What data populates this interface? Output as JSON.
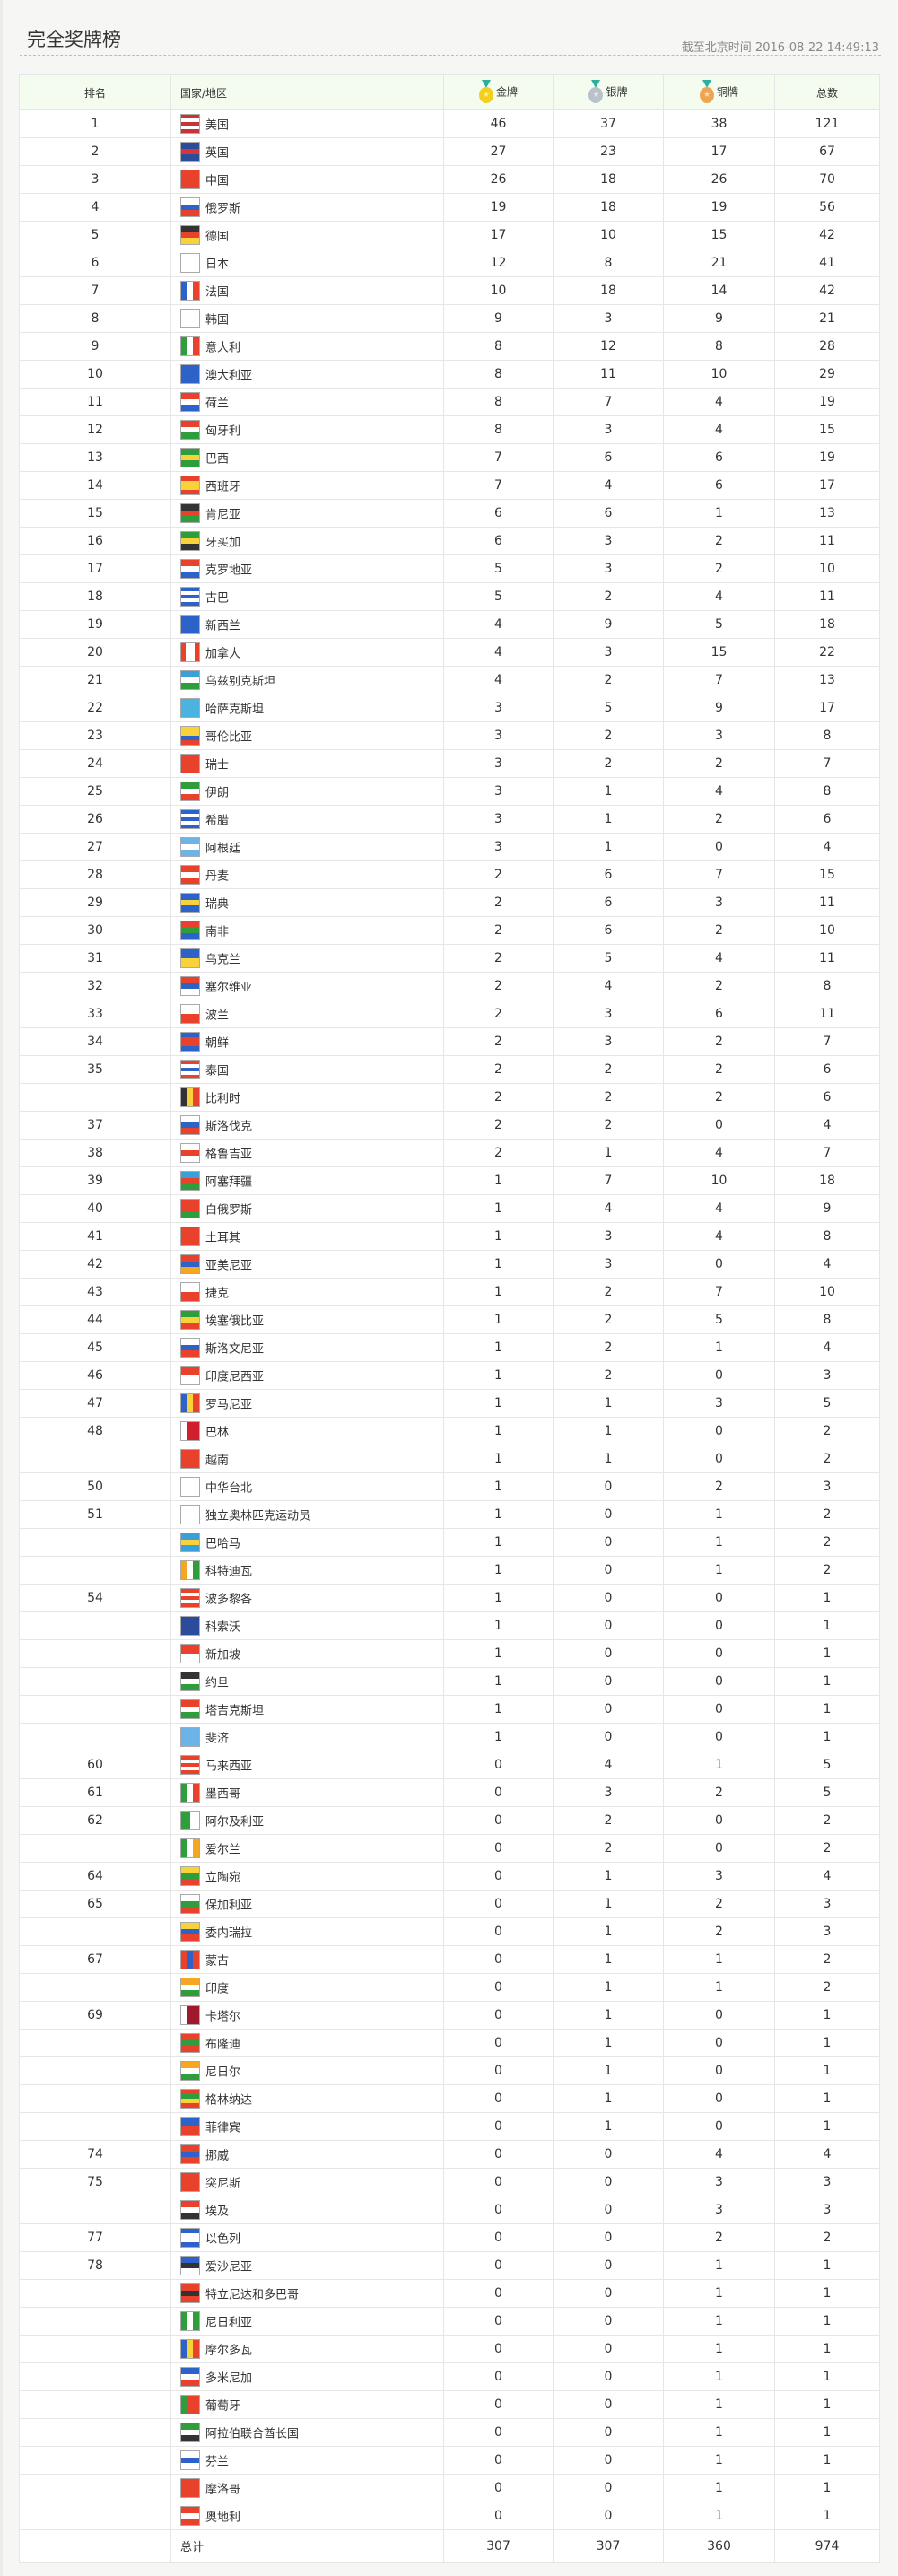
{
  "page": {
    "title": "完全奖牌榜",
    "timestamp": "截至北京时间 2016-08-22 14:49:13"
  },
  "table": {
    "headers": {
      "rank": "排名",
      "country": "国家/地区",
      "gold": "金牌",
      "silver": "银牌",
      "bronze": "铜牌",
      "total": "总数"
    },
    "medal_colors": {
      "gold": "#f3cf1c",
      "silver": "#b9c2c9",
      "bronze": "#eea552"
    },
    "rows": [
      {
        "rank": "1",
        "name": "美国",
        "gold": "46",
        "silver": "37",
        "bronze": "38",
        "total": "121",
        "flag": "h:#c8333a,#fff,#c8333a,#fff,#c8333a"
      },
      {
        "rank": "2",
        "name": "英国",
        "gold": "27",
        "silver": "23",
        "bronze": "17",
        "total": "67",
        "flag": "h:#2a4c9b,#d6363b,#2a4c9b"
      },
      {
        "rank": "3",
        "name": "中国",
        "gold": "26",
        "silver": "18",
        "bronze": "26",
        "total": "70",
        "flag": "h:#e8412c"
      },
      {
        "rank": "4",
        "name": "俄罗斯",
        "gold": "19",
        "silver": "18",
        "bronze": "19",
        "total": "56",
        "flag": "h:#fff,#2d62c8,#e8412c"
      },
      {
        "rank": "5",
        "name": "德国",
        "gold": "17",
        "silver": "10",
        "bronze": "15",
        "total": "42",
        "flag": "h:#333,#e8412c,#f7d23a"
      },
      {
        "rank": "6",
        "name": "日本",
        "gold": "12",
        "silver": "8",
        "bronze": "21",
        "total": "41",
        "flag": "h:#fff"
      },
      {
        "rank": "7",
        "name": "法国",
        "gold": "10",
        "silver": "18",
        "bronze": "14",
        "total": "42",
        "flag": "v:#2d62c8,#fff,#e8412c"
      },
      {
        "rank": "8",
        "name": "韩国",
        "gold": "9",
        "silver": "3",
        "bronze": "9",
        "total": "21",
        "flag": "h:#fff"
      },
      {
        "rank": "9",
        "name": "意大利",
        "gold": "8",
        "silver": "12",
        "bronze": "8",
        "total": "28",
        "flag": "v:#2e9d3c,#fff,#e8412c"
      },
      {
        "rank": "10",
        "name": "澳大利亚",
        "gold": "8",
        "silver": "11",
        "bronze": "10",
        "total": "29",
        "flag": "h:#2d62c8"
      },
      {
        "rank": "11",
        "name": "荷兰",
        "gold": "8",
        "silver": "7",
        "bronze": "4",
        "total": "19",
        "flag": "h:#e8412c,#fff,#2d62c8"
      },
      {
        "rank": "12",
        "name": "匈牙利",
        "gold": "8",
        "silver": "3",
        "bronze": "4",
        "total": "15",
        "flag": "h:#e8412c,#fff,#2e9d3c"
      },
      {
        "rank": "13",
        "name": "巴西",
        "gold": "7",
        "silver": "6",
        "bronze": "6",
        "total": "19",
        "flag": "h:#2e9d3c,#f7d23a,#2e9d3c"
      },
      {
        "rank": "14",
        "name": "西班牙",
        "gold": "7",
        "silver": "4",
        "bronze": "6",
        "total": "17",
        "flag": "h:#e8412c,#f7d23a,#f7d23a,#e8412c"
      },
      {
        "rank": "15",
        "name": "肯尼亚",
        "gold": "6",
        "silver": "6",
        "bronze": "1",
        "total": "13",
        "flag": "h:#333,#e8412c,#2e9d3c"
      },
      {
        "rank": "16",
        "name": "牙买加",
        "gold": "6",
        "silver": "3",
        "bronze": "2",
        "total": "11",
        "flag": "h:#2e9d3c,#f7d23a,#333"
      },
      {
        "rank": "17",
        "name": "克罗地亚",
        "gold": "5",
        "silver": "3",
        "bronze": "2",
        "total": "10",
        "flag": "h:#e8412c,#fff,#2d62c8"
      },
      {
        "rank": "18",
        "name": "古巴",
        "gold": "5",
        "silver": "2",
        "bronze": "4",
        "total": "11",
        "flag": "h:#2d62c8,#fff,#2d62c8,#fff,#2d62c8"
      },
      {
        "rank": "19",
        "name": "新西兰",
        "gold": "4",
        "silver": "9",
        "bronze": "5",
        "total": "18",
        "flag": "h:#2d62c8"
      },
      {
        "rank": "20",
        "name": "加拿大",
        "gold": "4",
        "silver": "3",
        "bronze": "15",
        "total": "22",
        "flag": "v:#e8412c,#fff,#fff,#e8412c"
      },
      {
        "rank": "21",
        "name": "乌兹别克斯坦",
        "gold": "4",
        "silver": "2",
        "bronze": "7",
        "total": "13",
        "flag": "h:#3aa0d8,#fff,#2e9d3c"
      },
      {
        "rank": "22",
        "name": "哈萨克斯坦",
        "gold": "3",
        "silver": "5",
        "bronze": "9",
        "total": "17",
        "flag": "h:#4ab3e0"
      },
      {
        "rank": "23",
        "name": "哥伦比亚",
        "gold": "3",
        "silver": "2",
        "bronze": "3",
        "total": "8",
        "flag": "h:#f7d23a,#f7d23a,#2d62c8,#e8412c"
      },
      {
        "rank": "24",
        "name": "瑞士",
        "gold": "3",
        "silver": "2",
        "bronze": "2",
        "total": "7",
        "flag": "h:#e8412c"
      },
      {
        "rank": "25",
        "name": "伊朗",
        "gold": "3",
        "silver": "1",
        "bronze": "4",
        "total": "8",
        "flag": "h:#2e9d3c,#fff,#e8412c"
      },
      {
        "rank": "26",
        "name": "希腊",
        "gold": "3",
        "silver": "1",
        "bronze": "2",
        "total": "6",
        "flag": "h:#2d62c8,#fff,#2d62c8,#fff,#2d62c8"
      },
      {
        "rank": "27",
        "name": "阿根廷",
        "gold": "3",
        "silver": "1",
        "bronze": "0",
        "total": "4",
        "flag": "h:#6cb4e8,#fff,#6cb4e8"
      },
      {
        "rank": "28",
        "name": "丹麦",
        "gold": "2",
        "silver": "6",
        "bronze": "7",
        "total": "15",
        "flag": "h:#e8412c,#fff,#e8412c"
      },
      {
        "rank": "29",
        "name": "瑞典",
        "gold": "2",
        "silver": "6",
        "bronze": "3",
        "total": "11",
        "flag": "h:#2d62c8,#f7d23a,#2d62c8"
      },
      {
        "rank": "30",
        "name": "南非",
        "gold": "2",
        "silver": "6",
        "bronze": "2",
        "total": "10",
        "flag": "h:#e8412c,#2e9d3c,#2d62c8"
      },
      {
        "rank": "31",
        "name": "乌克兰",
        "gold": "2",
        "silver": "5",
        "bronze": "4",
        "total": "11",
        "flag": "h:#2d62c8,#f7d23a"
      },
      {
        "rank": "32",
        "name": "塞尔维亚",
        "gold": "2",
        "silver": "4",
        "bronze": "2",
        "total": "8",
        "flag": "h:#e8412c,#2d62c8,#fff"
      },
      {
        "rank": "33",
        "name": "波兰",
        "gold": "2",
        "silver": "3",
        "bronze": "6",
        "total": "11",
        "flag": "h:#fff,#e8412c"
      },
      {
        "rank": "34",
        "name": "朝鲜",
        "gold": "2",
        "silver": "3",
        "bronze": "2",
        "total": "7",
        "flag": "h:#2d62c8,#e8412c,#e8412c,#2d62c8"
      },
      {
        "rank": "35",
        "name": "泰国",
        "gold": "2",
        "silver": "2",
        "bronze": "2",
        "total": "6",
        "flag": "h:#e8412c,#fff,#2d62c8,#fff,#e8412c"
      },
      {
        "rank": "",
        "name": "比利时",
        "gold": "2",
        "silver": "2",
        "bronze": "2",
        "total": "6",
        "flag": "v:#333,#f7d23a,#e8412c"
      },
      {
        "rank": "37",
        "name": "斯洛伐克",
        "gold": "2",
        "silver": "2",
        "bronze": "0",
        "total": "4",
        "flag": "h:#fff,#2d62c8,#e8412c"
      },
      {
        "rank": "38",
        "name": "格鲁吉亚",
        "gold": "2",
        "silver": "1",
        "bronze": "4",
        "total": "7",
        "flag": "h:#fff,#e8412c,#fff"
      },
      {
        "rank": "39",
        "name": "阿塞拜疆",
        "gold": "1",
        "silver": "7",
        "bronze": "10",
        "total": "18",
        "flag": "h:#3aa0d8,#e8412c,#2e9d3c"
      },
      {
        "rank": "40",
        "name": "白俄罗斯",
        "gold": "1",
        "silver": "4",
        "bronze": "4",
        "total": "9",
        "flag": "h:#e8412c,#e8412c,#2e9d3c"
      },
      {
        "rank": "41",
        "name": "土耳其",
        "gold": "1",
        "silver": "3",
        "bronze": "4",
        "total": "8",
        "flag": "h:#e8412c"
      },
      {
        "rank": "42",
        "name": "亚美尼亚",
        "gold": "1",
        "silver": "3",
        "bronze": "0",
        "total": "4",
        "flag": "h:#e8412c,#2d62c8,#f5a623"
      },
      {
        "rank": "43",
        "name": "捷克",
        "gold": "1",
        "silver": "2",
        "bronze": "7",
        "total": "10",
        "flag": "h:#fff,#e8412c"
      },
      {
        "rank": "44",
        "name": "埃塞俄比亚",
        "gold": "1",
        "silver": "2",
        "bronze": "5",
        "total": "8",
        "flag": "h:#2e9d3c,#f7d23a,#e8412c"
      },
      {
        "rank": "45",
        "name": "斯洛文尼亚",
        "gold": "1",
        "silver": "2",
        "bronze": "1",
        "total": "4",
        "flag": "h:#fff,#2d62c8,#e8412c"
      },
      {
        "rank": "46",
        "name": "印度尼西亚",
        "gold": "1",
        "silver": "2",
        "bronze": "0",
        "total": "3",
        "flag": "h:#e8412c,#fff"
      },
      {
        "rank": "47",
        "name": "罗马尼亚",
        "gold": "1",
        "silver": "1",
        "bronze": "3",
        "total": "5",
        "flag": "v:#2d62c8,#f7d23a,#e8412c"
      },
      {
        "rank": "48",
        "name": "巴林",
        "gold": "1",
        "silver": "1",
        "bronze": "0",
        "total": "2",
        "flag": "v:#fff,#d0202e,#d0202e"
      },
      {
        "rank": "",
        "name": "越南",
        "gold": "1",
        "silver": "1",
        "bronze": "0",
        "total": "2",
        "flag": "h:#e8412c"
      },
      {
        "rank": "50",
        "name": "中华台北",
        "gold": "1",
        "silver": "0",
        "bronze": "2",
        "total": "3",
        "flag": "h:#fff"
      },
      {
        "rank": "51",
        "name": "独立奥林匹克运动员",
        "gold": "1",
        "silver": "0",
        "bronze": "1",
        "total": "2",
        "flag": "h:#fff"
      },
      {
        "rank": "",
        "name": "巴哈马",
        "gold": "1",
        "silver": "0",
        "bronze": "1",
        "total": "2",
        "flag": "h:#3aa0d8,#f7d23a,#3aa0d8"
      },
      {
        "rank": "",
        "name": "科特迪瓦",
        "gold": "1",
        "silver": "0",
        "bronze": "1",
        "total": "2",
        "flag": "v:#f5a623,#fff,#2e9d3c"
      },
      {
        "rank": "54",
        "name": "波多黎各",
        "gold": "1",
        "silver": "0",
        "bronze": "0",
        "total": "1",
        "flag": "h:#e8412c,#fff,#e8412c,#fff,#e8412c"
      },
      {
        "rank": "",
        "name": "科索沃",
        "gold": "1",
        "silver": "0",
        "bronze": "0",
        "total": "1",
        "flag": "h:#2a4c9b"
      },
      {
        "rank": "",
        "name": "新加坡",
        "gold": "1",
        "silver": "0",
        "bronze": "0",
        "total": "1",
        "flag": "h:#e8412c,#fff"
      },
      {
        "rank": "",
        "name": "约旦",
        "gold": "1",
        "silver": "0",
        "bronze": "0",
        "total": "1",
        "flag": "h:#333,#fff,#2e9d3c"
      },
      {
        "rank": "",
        "name": "塔吉克斯坦",
        "gold": "1",
        "silver": "0",
        "bronze": "0",
        "total": "1",
        "flag": "h:#e8412c,#fff,#2e9d3c"
      },
      {
        "rank": "",
        "name": "斐济",
        "gold": "1",
        "silver": "0",
        "bronze": "0",
        "total": "1",
        "flag": "h:#6cb4e8"
      },
      {
        "rank": "60",
        "name": "马来西亚",
        "gold": "0",
        "silver": "4",
        "bronze": "1",
        "total": "5",
        "flag": "h:#e8412c,#fff,#e8412c,#fff,#e8412c"
      },
      {
        "rank": "61",
        "name": "墨西哥",
        "gold": "0",
        "silver": "3",
        "bronze": "2",
        "total": "5",
        "flag": "v:#2e9d3c,#fff,#e8412c"
      },
      {
        "rank": "62",
        "name": "阿尔及利亚",
        "gold": "0",
        "silver": "2",
        "bronze": "0",
        "total": "2",
        "flag": "v:#2e9d3c,#fff"
      },
      {
        "rank": "",
        "name": "爱尔兰",
        "gold": "0",
        "silver": "2",
        "bronze": "0",
        "total": "2",
        "flag": "v:#2e9d3c,#fff,#f5a623"
      },
      {
        "rank": "64",
        "name": "立陶宛",
        "gold": "0",
        "silver": "1",
        "bronze": "3",
        "total": "4",
        "flag": "h:#f7d23a,#2e9d3c,#e8412c"
      },
      {
        "rank": "65",
        "name": "保加利亚",
        "gold": "0",
        "silver": "1",
        "bronze": "2",
        "total": "3",
        "flag": "h:#fff,#2e9d3c,#e8412c"
      },
      {
        "rank": "",
        "name": "委内瑞拉",
        "gold": "0",
        "silver": "1",
        "bronze": "2",
        "total": "3",
        "flag": "h:#f7d23a,#2d62c8,#e8412c"
      },
      {
        "rank": "67",
        "name": "蒙古",
        "gold": "0",
        "silver": "1",
        "bronze": "1",
        "total": "2",
        "flag": "v:#e8412c,#2d62c8,#e8412c"
      },
      {
        "rank": "",
        "name": "印度",
        "gold": "0",
        "silver": "1",
        "bronze": "1",
        "total": "2",
        "flag": "h:#f5a623,#fff,#2e9d3c"
      },
      {
        "rank": "69",
        "name": "卡塔尔",
        "gold": "0",
        "silver": "1",
        "bronze": "0",
        "total": "1",
        "flag": "v:#fff,#a0182b,#a0182b"
      },
      {
        "rank": "",
        "name": "布隆迪",
        "gold": "0",
        "silver": "1",
        "bronze": "0",
        "total": "1",
        "flag": "h:#e8412c,#2e9d3c,#e8412c"
      },
      {
        "rank": "",
        "name": "尼日尔",
        "gold": "0",
        "silver": "1",
        "bronze": "0",
        "total": "1",
        "flag": "h:#f5a623,#fff,#2e9d3c"
      },
      {
        "rank": "",
        "name": "格林纳达",
        "gold": "0",
        "silver": "1",
        "bronze": "0",
        "total": "1",
        "flag": "h:#e8412c,#2e9d3c,#f7d23a,#e8412c"
      },
      {
        "rank": "",
        "name": "菲律宾",
        "gold": "0",
        "silver": "1",
        "bronze": "0",
        "total": "1",
        "flag": "h:#2d62c8,#e8412c"
      },
      {
        "rank": "74",
        "name": "挪威",
        "gold": "0",
        "silver": "0",
        "bronze": "4",
        "total": "4",
        "flag": "h:#e8412c,#2d62c8,#e8412c"
      },
      {
        "rank": "75",
        "name": "突尼斯",
        "gold": "0",
        "silver": "0",
        "bronze": "3",
        "total": "3",
        "flag": "h:#e8412c"
      },
      {
        "rank": "",
        "name": "埃及",
        "gold": "0",
        "silver": "0",
        "bronze": "3",
        "total": "3",
        "flag": "h:#e8412c,#fff,#333"
      },
      {
        "rank": "77",
        "name": "以色列",
        "gold": "0",
        "silver": "0",
        "bronze": "2",
        "total": "2",
        "flag": "h:#2d62c8,#fff,#fff,#2d62c8"
      },
      {
        "rank": "78",
        "name": "爱沙尼亚",
        "gold": "0",
        "silver": "0",
        "bronze": "1",
        "total": "1",
        "flag": "h:#2d62c8,#333,#fff"
      },
      {
        "rank": "",
        "name": "特立尼达和多巴哥",
        "gold": "0",
        "silver": "0",
        "bronze": "1",
        "total": "1",
        "flag": "h:#e8412c,#333,#e8412c"
      },
      {
        "rank": "",
        "name": "尼日利亚",
        "gold": "0",
        "silver": "0",
        "bronze": "1",
        "total": "1",
        "flag": "v:#2e9d3c,#fff,#2e9d3c"
      },
      {
        "rank": "",
        "name": "摩尔多瓦",
        "gold": "0",
        "silver": "0",
        "bronze": "1",
        "total": "1",
        "flag": "v:#2d62c8,#f7d23a,#e8412c"
      },
      {
        "rank": "",
        "name": "多米尼加",
        "gold": "0",
        "silver": "0",
        "bronze": "1",
        "total": "1",
        "flag": "h:#2d62c8,#fff,#e8412c"
      },
      {
        "rank": "",
        "name": "葡萄牙",
        "gold": "0",
        "silver": "0",
        "bronze": "1",
        "total": "1",
        "flag": "v:#2e9d3c,#e8412c,#e8412c"
      },
      {
        "rank": "",
        "name": "阿拉伯联合酋长国",
        "gold": "0",
        "silver": "0",
        "bronze": "1",
        "total": "1",
        "flag": "h:#2e9d3c,#fff,#333"
      },
      {
        "rank": "",
        "name": "芬兰",
        "gold": "0",
        "silver": "0",
        "bronze": "1",
        "total": "1",
        "flag": "h:#fff,#2d62c8,#fff"
      },
      {
        "rank": "",
        "name": "摩洛哥",
        "gold": "0",
        "silver": "0",
        "bronze": "1",
        "total": "1",
        "flag": "h:#e8412c"
      },
      {
        "rank": "",
        "name": "奥地利",
        "gold": "0",
        "silver": "0",
        "bronze": "1",
        "total": "1",
        "flag": "h:#e8412c,#fff,#e8412c"
      }
    ],
    "total_row": {
      "label": "总计",
      "gold": "307",
      "silver": "307",
      "bronze": "360",
      "total": "974"
    }
  }
}
